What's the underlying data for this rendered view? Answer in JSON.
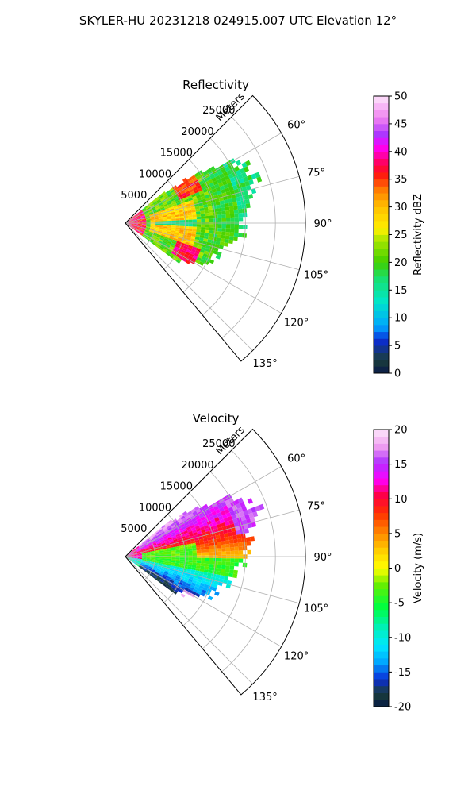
{
  "figure": {
    "title": "SKYLER-HU  20231218  024915.007 UTC Elevation 12°"
  },
  "chart_data": [
    {
      "type": "heatmap",
      "projection": "polar-sector",
      "title": "Reflectivity",
      "r_axis_label": "Meters",
      "r_ticks": [
        "5000",
        "10000",
        "15000",
        "20000",
        "25000"
      ],
      "r_tick_values": [
        5000,
        10000,
        15000,
        20000,
        25000
      ],
      "r_lim": [
        0,
        30000
      ],
      "theta_ticks": [
        "60°",
        "75°",
        "90°",
        "105°",
        "120°",
        "135°"
      ],
      "theta_tick_values": [
        60,
        75,
        90,
        105,
        120,
        135
      ],
      "theta_lim": [
        45,
        140
      ],
      "grid": true,
      "colorbar": {
        "label": "Reflectivity dBZ",
        "ticks": [
          "0",
          "5",
          "10",
          "15",
          "20",
          "25",
          "30",
          "35",
          "40",
          "45",
          "50"
        ],
        "tick_values": [
          0,
          5,
          10,
          15,
          20,
          25,
          30,
          35,
          40,
          45,
          50
        ],
        "range": [
          0,
          50
        ]
      }
    },
    {
      "type": "heatmap",
      "projection": "polar-sector",
      "title": "Velocity",
      "r_axis_label": "Meters",
      "r_ticks": [
        "5000",
        "10000",
        "15000",
        "20000",
        "25000"
      ],
      "r_tick_values": [
        5000,
        10000,
        15000,
        20000,
        25000
      ],
      "r_lim": [
        0,
        30000
      ],
      "theta_ticks": [
        "60°",
        "75°",
        "90°",
        "105°",
        "120°",
        "135°"
      ],
      "theta_tick_values": [
        60,
        75,
        90,
        105,
        120,
        135
      ],
      "theta_lim": [
        45,
        140
      ],
      "grid": true,
      "colorbar": {
        "label": "Velocity (m/s)",
        "ticks": [
          "-20",
          "-15",
          "-10",
          "-5",
          "0",
          "5",
          "10",
          "15",
          "20"
        ],
        "tick_values": [
          -20,
          -15,
          -10,
          -5,
          0,
          5,
          10,
          15,
          20
        ],
        "range": [
          -20,
          20
        ]
      }
    }
  ]
}
